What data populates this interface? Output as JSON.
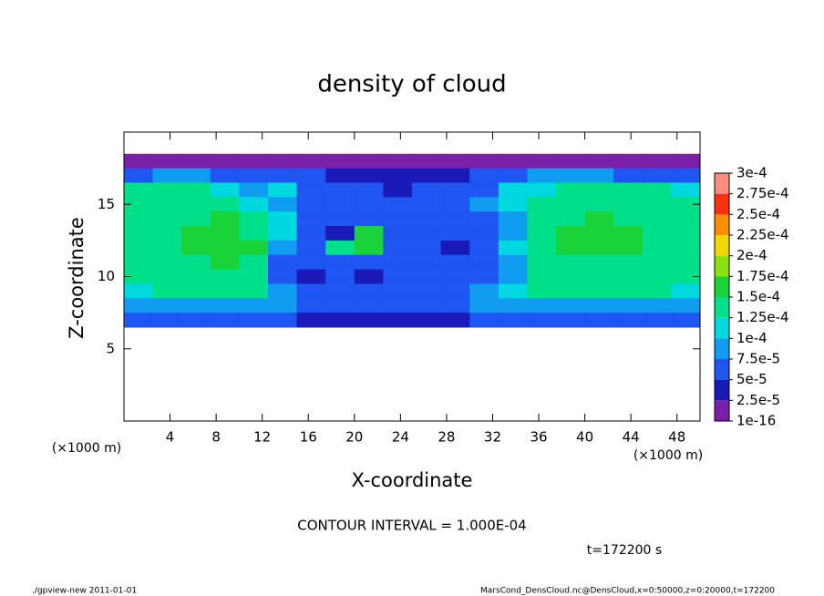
{
  "chart_data": {
    "type": "heatmap",
    "title": "density of cloud",
    "x_label": "X-coordinate",
    "y_label": "Z-coordinate",
    "x_unit_label": "(×1000 m)",
    "annotation": "CONTOUR INTERVAL = 1.000E-04",
    "time_label": "t=172200 s",
    "footer_left": "./gpview-new  2011-01-01",
    "footer_right": "MarsCond_DensCloud.nc@DensCloud,x=0:50000,z=0:20000,t=172200",
    "xlim": [
      0,
      50
    ],
    "ylim": [
      0,
      20
    ],
    "xticks": [
      4,
      8,
      12,
      16,
      20,
      24,
      28,
      32,
      36,
      40,
      44,
      48
    ],
    "yticks": [
      5,
      10,
      15
    ],
    "x": [
      1.25,
      3.75,
      6.25,
      8.75,
      11.25,
      13.75,
      16.25,
      18.75,
      21.25,
      23.75,
      26.25,
      28.75,
      31.25,
      33.75,
      36.25,
      38.75,
      41.25,
      43.75,
      46.25,
      48.75
    ],
    "y": [
      18,
      17,
      16,
      15,
      14,
      13,
      12,
      11,
      10,
      9,
      8,
      7
    ],
    "z": [
      [
        1e-05,
        1e-05,
        1e-05,
        1e-05,
        1e-05,
        1e-05,
        1e-05,
        1e-05,
        1e-05,
        1e-05,
        1e-05,
        1e-05,
        1e-05,
        1e-05,
        1e-05,
        1e-05,
        1e-05,
        1e-05,
        1e-05,
        1e-05
      ],
      [
        6e-05,
        9e-05,
        9e-05,
        6e-05,
        6e-05,
        6e-05,
        6e-05,
        3.5e-05,
        3.5e-05,
        3.5e-05,
        3.5e-05,
        3.5e-05,
        6e-05,
        6e-05,
        9e-05,
        9e-05,
        9e-05,
        6e-05,
        6e-05,
        6e-05
      ],
      [
        0.000135,
        0.000135,
        0.000135,
        0.00011,
        9e-05,
        0.00011,
        6e-05,
        6e-05,
        6e-05,
        3.5e-05,
        6e-05,
        6e-05,
        6e-05,
        0.00011,
        0.00011,
        0.000135,
        0.000135,
        0.000135,
        0.000135,
        0.00011
      ],
      [
        0.000135,
        0.000135,
        0.000135,
        0.000135,
        0.00011,
        9e-05,
        6e-05,
        6e-05,
        6e-05,
        6e-05,
        6e-05,
        6e-05,
        9e-05,
        0.00011,
        0.000135,
        0.000135,
        0.000135,
        0.000135,
        0.000135,
        0.000135
      ],
      [
        0.000135,
        0.000135,
        0.000135,
        0.00016,
        0.000135,
        0.00011,
        6e-05,
        6e-05,
        6e-05,
        6e-05,
        6e-05,
        6e-05,
        6e-05,
        9e-05,
        0.000135,
        0.000135,
        0.00016,
        0.000135,
        0.000135,
        0.000135
      ],
      [
        0.000135,
        0.000135,
        0.00016,
        0.00016,
        0.000135,
        0.00011,
        6e-05,
        3.5e-05,
        0.00016,
        6e-05,
        6e-05,
        6e-05,
        6e-05,
        9e-05,
        0.000135,
        0.00016,
        0.00016,
        0.00016,
        0.000135,
        0.000135
      ],
      [
        0.000135,
        0.000135,
        0.00016,
        0.00016,
        0.00016,
        9e-05,
        6e-05,
        0.000135,
        0.00016,
        6e-05,
        6e-05,
        3.5e-05,
        6e-05,
        0.00011,
        0.000135,
        0.00016,
        0.00016,
        0.00016,
        0.000135,
        0.000135
      ],
      [
        0.000135,
        0.000135,
        0.000135,
        0.00016,
        0.000135,
        6e-05,
        6e-05,
        6e-05,
        6e-05,
        6e-05,
        6e-05,
        6e-05,
        6e-05,
        9e-05,
        0.000135,
        0.000135,
        0.000135,
        0.000135,
        0.000135,
        0.000135
      ],
      [
        0.000135,
        0.000135,
        0.000135,
        0.000135,
        0.000135,
        6e-05,
        3.5e-05,
        6e-05,
        3.5e-05,
        6e-05,
        6e-05,
        6e-05,
        6e-05,
        9e-05,
        0.000135,
        0.000135,
        0.000135,
        0.000135,
        0.000135,
        0.000135
      ],
      [
        0.00011,
        0.000135,
        0.000135,
        0.000135,
        0.000135,
        9e-05,
        6e-05,
        6e-05,
        6e-05,
        6e-05,
        6e-05,
        6e-05,
        9e-05,
        0.00011,
        0.000135,
        0.000135,
        0.000135,
        0.000135,
        0.000135,
        0.00011
      ],
      [
        9e-05,
        9e-05,
        9e-05,
        9e-05,
        9e-05,
        9e-05,
        6e-05,
        6e-05,
        6e-05,
        6e-05,
        6e-05,
        6e-05,
        9e-05,
        9e-05,
        9e-05,
        9e-05,
        9e-05,
        9e-05,
        9e-05,
        9e-05
      ],
      [
        6e-05,
        6e-05,
        6e-05,
        6e-05,
        6e-05,
        6e-05,
        3.5e-05,
        3.5e-05,
        3.5e-05,
        3.5e-05,
        3.5e-05,
        3.5e-05,
        6e-05,
        6e-05,
        6e-05,
        6e-05,
        6e-05,
        6e-05,
        6e-05,
        6e-05
      ]
    ],
    "levels": [
      {
        "value": 1e-16,
        "label": "1e-16"
      },
      {
        "value": 2.5e-05,
        "label": "2.5e-5"
      },
      {
        "value": 5e-05,
        "label": "5e-5"
      },
      {
        "value": 7.5e-05,
        "label": "7.5e-5"
      },
      {
        "value": 0.0001,
        "label": "1e-4"
      },
      {
        "value": 0.000125,
        "label": "1.25e-4"
      },
      {
        "value": 0.00015,
        "label": "1.5e-4"
      },
      {
        "value": 0.000175,
        "label": "1.75e-4"
      },
      {
        "value": 0.0002,
        "label": "2e-4"
      },
      {
        "value": 0.000225,
        "label": "2.25e-4"
      },
      {
        "value": 0.00025,
        "label": "2.5e-4"
      },
      {
        "value": 0.000275,
        "label": "2.75e-4"
      },
      {
        "value": 0.0003,
        "label": "3e-4"
      }
    ],
    "colors": [
      "#7a1fa8",
      "#1a1ab8",
      "#1f55f0",
      "#109cf0",
      "#00d8e0",
      "#00e08a",
      "#1ad23a",
      "#8ce010",
      "#f0d800",
      "#ff9000",
      "#ff3010",
      "#ff8a80"
    ]
  }
}
